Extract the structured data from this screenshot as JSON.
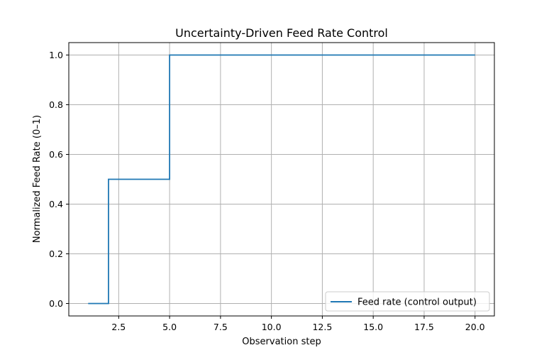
{
  "chart_data": {
    "type": "line",
    "title": "Uncertainty-Driven Feed Rate Control",
    "xlabel": "Observation step",
    "ylabel": "Normalized Feed Rate (0–1)",
    "xlim": [
      0.05,
      20.95
    ],
    "ylim": [
      -0.05,
      1.05
    ],
    "xticks": [
      2.5,
      5.0,
      7.5,
      10.0,
      12.5,
      15.0,
      17.5,
      20.0
    ],
    "xtick_labels": [
      "2.5",
      "5.0",
      "7.5",
      "10.0",
      "12.5",
      "15.0",
      "17.5",
      "20.0"
    ],
    "yticks": [
      0.0,
      0.2,
      0.4,
      0.6,
      0.8,
      1.0
    ],
    "ytick_labels": [
      "0.0",
      "0.2",
      "0.4",
      "0.6",
      "0.8",
      "1.0"
    ],
    "grid": true,
    "legend_position": "lower-right",
    "step": "pre",
    "series": [
      {
        "name": "Feed rate (control output)",
        "color": "#1f77b4",
        "x": [
          1,
          2,
          3,
          4,
          5,
          6,
          7,
          8,
          9,
          10,
          11,
          12,
          13,
          14,
          15,
          16,
          17,
          18,
          19,
          20
        ],
        "y": [
          0,
          0,
          0.5,
          0.5,
          0.5,
          1,
          1,
          1,
          1,
          1,
          1,
          1,
          1,
          1,
          1,
          1,
          1,
          1,
          1,
          1
        ]
      }
    ]
  }
}
